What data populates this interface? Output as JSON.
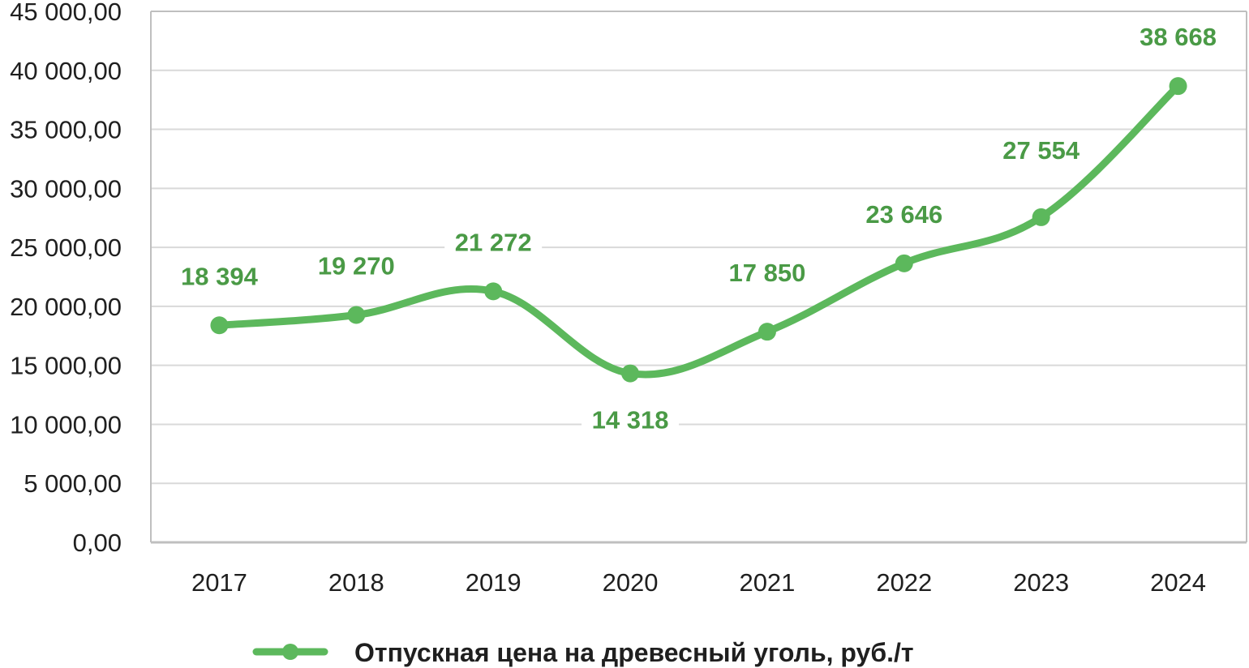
{
  "chart_data": {
    "type": "line",
    "categories": [
      "2017",
      "2018",
      "2019",
      "2020",
      "2021",
      "2022",
      "2023",
      "2024"
    ],
    "series": [
      {
        "name": "Отпускная цена на древесный уголь, руб./т",
        "values": [
          18394,
          19270,
          21272,
          14318,
          17850,
          23646,
          27554,
          38668
        ],
        "labels": [
          "18 394",
          "19 270",
          "21 272",
          "14 318",
          "17 850",
          "23 646",
          "27 554",
          "38 668"
        ],
        "color": "#5cb85c"
      }
    ],
    "ylim": [
      0,
      45000
    ],
    "ytick_values": [
      0,
      5000,
      10000,
      15000,
      20000,
      25000,
      30000,
      35000,
      40000,
      45000
    ],
    "ytick_labels": [
      "0,00",
      "5 000,00",
      "10 000,00",
      "15 000,00",
      "20 000,00",
      "25 000,00",
      "30 000,00",
      "35 000,00",
      "40 000,00",
      "45 000,00"
    ],
    "grid": true,
    "legend": "bottom",
    "title": "",
    "xlabel": "",
    "ylabel": "",
    "colors": {
      "series": "#5cb85c",
      "label": "#4a9a46",
      "grid": "#d9d9d9",
      "axis": "#bfbfbf"
    }
  }
}
